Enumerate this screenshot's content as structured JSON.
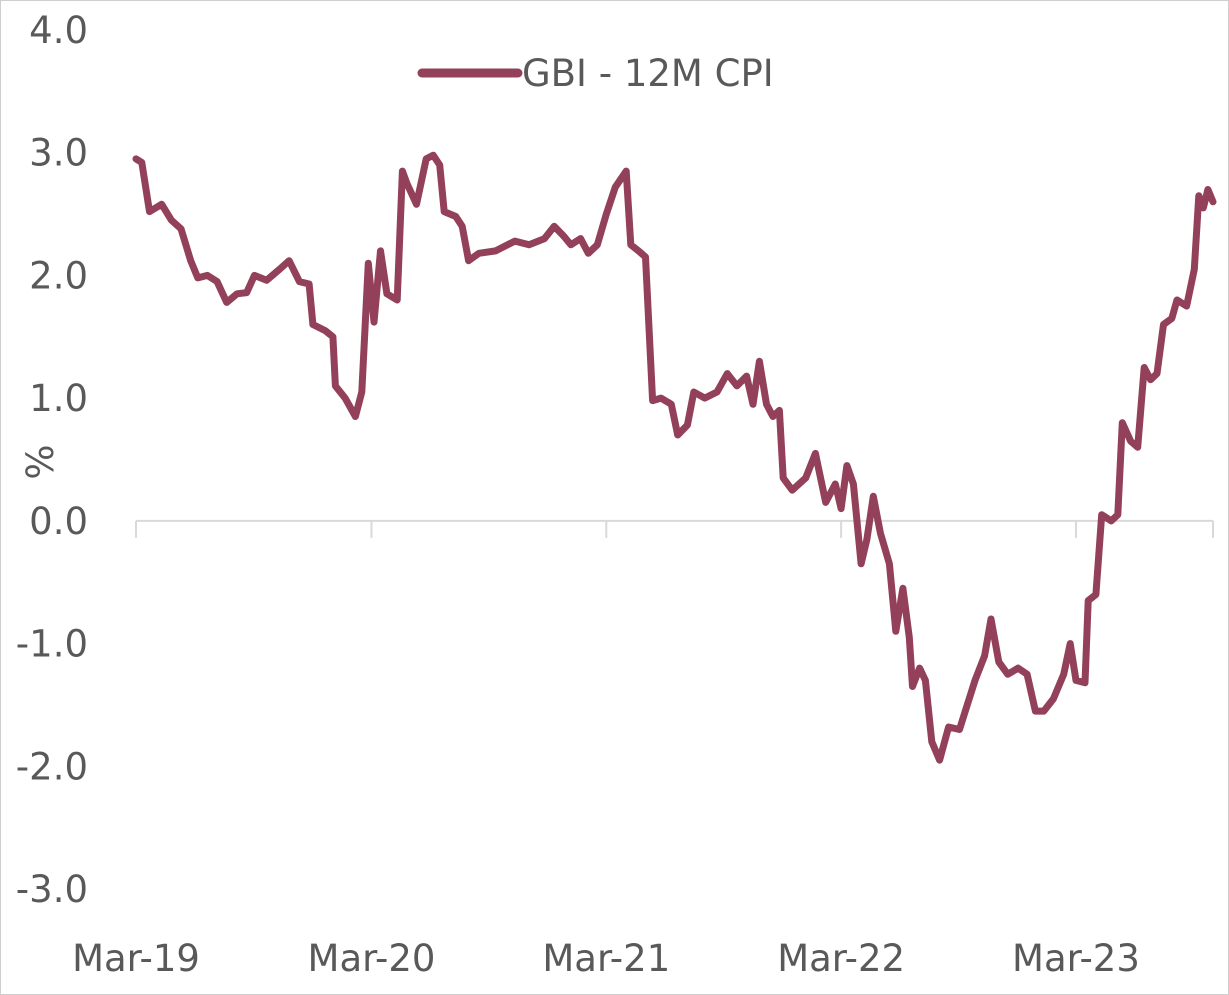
{
  "chart_data": {
    "type": "line",
    "title": "",
    "xlabel": "",
    "ylabel": "%",
    "ylim": [
      -3.0,
      4.0
    ],
    "yticks": [
      "4.0",
      "3.0",
      "2.0",
      "1.0",
      "0.0",
      "-1.0",
      "-2.0",
      "-3.0"
    ],
    "x_range": [
      "2019-03-01",
      "2023-09-30"
    ],
    "xticks": [
      {
        "date": "2019-03-01",
        "label": "Mar-19"
      },
      {
        "date": "2020-03-01",
        "label": "Mar-20"
      },
      {
        "date": "2021-03-01",
        "label": "Mar-21"
      },
      {
        "date": "2022-03-01",
        "label": "Mar-22"
      },
      {
        "date": "2023-03-01",
        "label": "Mar-23"
      }
    ],
    "grid": false,
    "legend_position": "top-center",
    "colors": {
      "series": "#93405a",
      "text": "#595959",
      "axis": "#d9d9d9"
    },
    "series": [
      {
        "name": "GBI - 12M CPI",
        "points": [
          [
            "2019-03-01",
            2.95
          ],
          [
            "2019-03-10",
            2.92
          ],
          [
            "2019-03-22",
            2.52
          ],
          [
            "2019-04-10",
            2.58
          ],
          [
            "2019-04-25",
            2.45
          ],
          [
            "2019-05-10",
            2.38
          ],
          [
            "2019-05-25",
            2.12
          ],
          [
            "2019-06-05",
            1.98
          ],
          [
            "2019-06-20",
            2.0
          ],
          [
            "2019-07-05",
            1.95
          ],
          [
            "2019-07-20",
            1.78
          ],
          [
            "2019-08-05",
            1.85
          ],
          [
            "2019-08-20",
            1.86
          ],
          [
            "2019-09-01",
            2.0
          ],
          [
            "2019-09-20",
            1.96
          ],
          [
            "2019-10-10",
            2.05
          ],
          [
            "2019-10-25",
            2.12
          ],
          [
            "2019-11-10",
            1.95
          ],
          [
            "2019-11-25",
            1.93
          ],
          [
            "2019-12-01",
            1.6
          ],
          [
            "2019-12-20",
            1.55
          ],
          [
            "2020-01-01",
            1.5
          ],
          [
            "2020-01-05",
            1.1
          ],
          [
            "2020-01-20",
            1.0
          ],
          [
            "2020-02-05",
            0.85
          ],
          [
            "2020-02-15",
            1.05
          ],
          [
            "2020-02-25",
            2.1
          ],
          [
            "2020-03-05",
            1.62
          ],
          [
            "2020-03-15",
            2.2
          ],
          [
            "2020-03-25",
            1.85
          ],
          [
            "2020-04-10",
            1.8
          ],
          [
            "2020-04-18",
            2.85
          ],
          [
            "2020-04-25",
            2.75
          ],
          [
            "2020-05-10",
            2.58
          ],
          [
            "2020-05-25",
            2.95
          ],
          [
            "2020-06-05",
            2.98
          ],
          [
            "2020-06-15",
            2.9
          ],
          [
            "2020-06-22",
            2.52
          ],
          [
            "2020-07-10",
            2.48
          ],
          [
            "2020-07-20",
            2.4
          ],
          [
            "2020-07-30",
            2.12
          ],
          [
            "2020-08-15",
            2.18
          ],
          [
            "2020-09-10",
            2.2
          ],
          [
            "2020-10-10",
            2.28
          ],
          [
            "2020-11-01",
            2.25
          ],
          [
            "2020-11-25",
            2.3
          ],
          [
            "2020-12-10",
            2.4
          ],
          [
            "2020-12-25",
            2.32
          ],
          [
            "2021-01-05",
            2.25
          ],
          [
            "2021-01-20",
            2.3
          ],
          [
            "2021-02-01",
            2.18
          ],
          [
            "2021-02-15",
            2.25
          ],
          [
            "2021-03-01",
            2.5
          ],
          [
            "2021-03-15",
            2.72
          ],
          [
            "2021-04-01",
            2.85
          ],
          [
            "2021-04-08",
            2.25
          ],
          [
            "2021-04-20",
            2.2
          ],
          [
            "2021-05-01",
            2.15
          ],
          [
            "2021-05-12",
            0.98
          ],
          [
            "2021-05-25",
            1.0
          ],
          [
            "2021-06-10",
            0.95
          ],
          [
            "2021-06-20",
            0.7
          ],
          [
            "2021-07-05",
            0.78
          ],
          [
            "2021-07-15",
            1.05
          ],
          [
            "2021-08-01",
            1.0
          ],
          [
            "2021-08-20",
            1.05
          ],
          [
            "2021-09-05",
            1.2
          ],
          [
            "2021-09-20",
            1.1
          ],
          [
            "2021-10-05",
            1.18
          ],
          [
            "2021-10-15",
            0.95
          ],
          [
            "2021-10-25",
            1.3
          ],
          [
            "2021-11-05",
            0.95
          ],
          [
            "2021-11-15",
            0.85
          ],
          [
            "2021-11-25",
            0.9
          ],
          [
            "2021-12-01",
            0.35
          ],
          [
            "2021-12-15",
            0.25
          ],
          [
            "2022-01-05",
            0.35
          ],
          [
            "2022-01-20",
            0.55
          ],
          [
            "2022-02-05",
            0.15
          ],
          [
            "2022-02-20",
            0.3
          ],
          [
            "2022-03-01",
            0.1
          ],
          [
            "2022-03-10",
            0.45
          ],
          [
            "2022-03-20",
            0.3
          ],
          [
            "2022-04-01",
            -0.35
          ],
          [
            "2022-04-10",
            -0.15
          ],
          [
            "2022-04-20",
            0.2
          ],
          [
            "2022-05-01",
            -0.1
          ],
          [
            "2022-05-15",
            -0.35
          ],
          [
            "2022-05-25",
            -0.9
          ],
          [
            "2022-06-05",
            -0.55
          ],
          [
            "2022-06-15",
            -0.95
          ],
          [
            "2022-06-20",
            -1.35
          ],
          [
            "2022-07-01",
            -1.2
          ],
          [
            "2022-07-10",
            -1.3
          ],
          [
            "2022-07-20",
            -1.8
          ],
          [
            "2022-08-01",
            -1.95
          ],
          [
            "2022-08-15",
            -1.68
          ],
          [
            "2022-09-01",
            -1.7
          ],
          [
            "2022-09-10",
            -1.55
          ],
          [
            "2022-09-25",
            -1.3
          ],
          [
            "2022-10-10",
            -1.1
          ],
          [
            "2022-10-20",
            -0.8
          ],
          [
            "2022-11-01",
            -1.15
          ],
          [
            "2022-11-15",
            -1.25
          ],
          [
            "2022-12-01",
            -1.2
          ],
          [
            "2022-12-15",
            -1.25
          ],
          [
            "2022-12-28",
            -1.55
          ],
          [
            "2023-01-10",
            -1.55
          ],
          [
            "2023-01-25",
            -1.45
          ],
          [
            "2023-02-10",
            -1.25
          ],
          [
            "2023-02-20",
            -1.0
          ],
          [
            "2023-03-01",
            -1.3
          ],
          [
            "2023-03-15",
            -1.32
          ],
          [
            "2023-03-20",
            -0.65
          ],
          [
            "2023-04-01",
            -0.6
          ],
          [
            "2023-04-10",
            0.05
          ],
          [
            "2023-04-25",
            0.0
          ],
          [
            "2023-05-05",
            0.05
          ],
          [
            "2023-05-12",
            0.8
          ],
          [
            "2023-05-25",
            0.65
          ],
          [
            "2023-06-05",
            0.6
          ],
          [
            "2023-06-15",
            1.25
          ],
          [
            "2023-06-25",
            1.15
          ],
          [
            "2023-07-05",
            1.2
          ],
          [
            "2023-07-15",
            1.6
          ],
          [
            "2023-07-28",
            1.65
          ],
          [
            "2023-08-05",
            1.8
          ],
          [
            "2023-08-20",
            1.75
          ],
          [
            "2023-09-01",
            2.05
          ],
          [
            "2023-09-08",
            2.65
          ],
          [
            "2023-09-15",
            2.55
          ],
          [
            "2023-09-22",
            2.7
          ],
          [
            "2023-09-30",
            2.6
          ]
        ]
      }
    ]
  }
}
